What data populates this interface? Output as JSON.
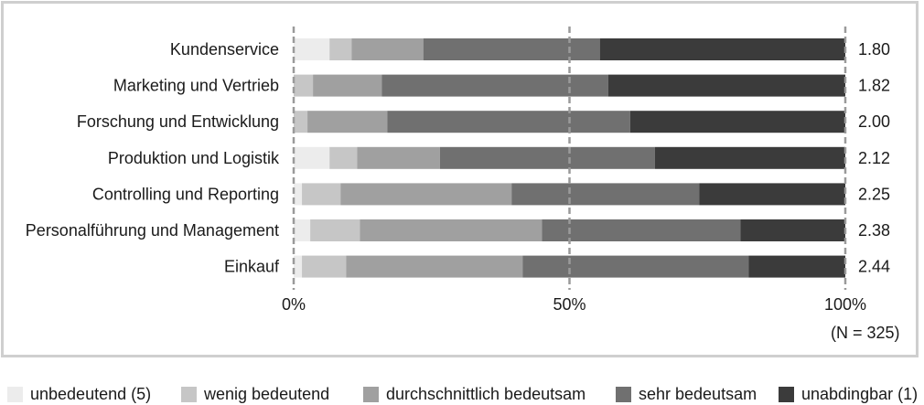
{
  "chart_data": {
    "type": "bar",
    "orientation": "horizontal",
    "stacked": true,
    "percent_scale": true,
    "categories": [
      "Kundenservice",
      "Marketing und Vertrieb",
      "Forschung und Entwicklung",
      "Produktion und Logistik",
      "Controlling und Reporting",
      "Personalführung und Management",
      "Einkauf"
    ],
    "series": [
      {
        "name": "unbedeutend (5)",
        "color": "#ececec",
        "values": [
          6.5,
          0,
          0,
          6.5,
          1.5,
          3,
          1.5
        ]
      },
      {
        "name": "wenig bedeutend",
        "color": "#c6c6c6",
        "values": [
          4,
          3.5,
          2.5,
          5,
          7,
          9,
          8
        ]
      },
      {
        "name": "durchschnittlich bedeutsam",
        "color": "#a0a0a0",
        "values": [
          13,
          12.5,
          14.5,
          15,
          31,
          33,
          32
        ]
      },
      {
        "name": "sehr bedeutsam",
        "color": "#707070",
        "values": [
          32,
          41,
          44,
          39,
          34,
          36,
          41
        ]
      },
      {
        "name": "unabdingbar (1)",
        "color": "#3b3b3b",
        "values": [
          44.5,
          43,
          39,
          34.5,
          26.5,
          19,
          17.5
        ]
      }
    ],
    "means": [
      "1.80",
      "1.82",
      "2.00",
      "2.12",
      "2.25",
      "2.38",
      "2.44"
    ],
    "x_ticks": [
      "0%",
      "50%",
      "100%"
    ],
    "xlim": [
      0,
      100
    ],
    "gridlines": "dashed at 0%, 50%, 100%",
    "legend_position": "bottom",
    "note": "(N = 325)"
  }
}
